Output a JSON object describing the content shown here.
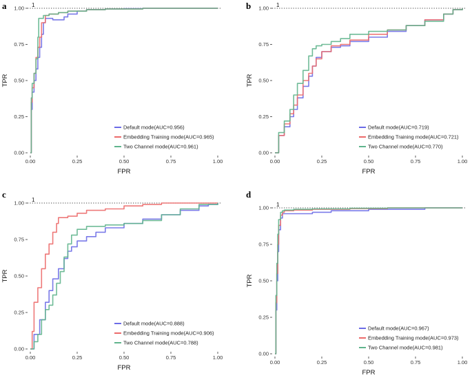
{
  "figure": {
    "colors": {
      "default": "#6b6be6",
      "embedding": "#ec6a6a",
      "two_channel": "#5fb48c",
      "reference": "#000000"
    }
  },
  "chart_data": [
    {
      "panel": "a",
      "type": "line",
      "title": "",
      "xlabel": "FPR",
      "ylabel": "TPR",
      "xlim": [
        0,
        1
      ],
      "ylim": [
        0,
        1
      ],
      "x_ticks": [
        "0.00",
        "0.25",
        "0.50",
        "0.75",
        "1.00"
      ],
      "y_ticks": [
        "0.00",
        "0.25",
        "0.50",
        "0.75",
        "1.00"
      ],
      "reference_line": {
        "y": 1,
        "label": "1",
        "style": "dotted"
      },
      "legend_position": "bottom-right",
      "series": [
        {
          "name": "Default mode(AUC=0.956)",
          "color_key": "default",
          "x": [
            0,
            0.005,
            0.01,
            0.02,
            0.03,
            0.04,
            0.05,
            0.06,
            0.07,
            0.08,
            0.1,
            0.12,
            0.15,
            0.18,
            0.2,
            0.25,
            0.3,
            0.4,
            0.5,
            0.6,
            0.8,
            1.0
          ],
          "y": [
            0,
            0.3,
            0.42,
            0.5,
            0.58,
            0.66,
            0.73,
            0.82,
            0.9,
            0.93,
            0.93,
            0.92,
            0.92,
            0.94,
            0.96,
            0.98,
            0.99,
            0.995,
            0.997,
            1.0,
            1.0,
            1.0
          ]
        },
        {
          "name": "Embedding Training mode(AUC=0.965)",
          "color_key": "embedding",
          "x": [
            0,
            0.005,
            0.01,
            0.02,
            0.03,
            0.04,
            0.05,
            0.06,
            0.08,
            0.1,
            0.15,
            0.2,
            0.3,
            0.4,
            0.6,
            0.8,
            1.0
          ],
          "y": [
            0,
            0.35,
            0.45,
            0.55,
            0.66,
            0.73,
            0.8,
            0.9,
            0.95,
            0.96,
            0.97,
            0.98,
            0.99,
            0.995,
            1.0,
            1.0,
            1.0
          ]
        },
        {
          "name": "Two Channel mode(AUC=0.961)",
          "color_key": "two_channel",
          "x": [
            0,
            0.005,
            0.01,
            0.02,
            0.03,
            0.04,
            0.045,
            0.07,
            0.1,
            0.15,
            0.2,
            0.3,
            0.4,
            0.6,
            0.8,
            1.0
          ],
          "y": [
            0,
            0.38,
            0.48,
            0.55,
            0.65,
            0.8,
            0.93,
            0.95,
            0.96,
            0.97,
            0.98,
            0.99,
            0.995,
            1.0,
            1.0,
            1.0
          ]
        }
      ]
    },
    {
      "panel": "b",
      "type": "line",
      "title": "",
      "xlabel": "FPR",
      "ylabel": "TPR",
      "xlim": [
        0,
        1
      ],
      "ylim": [
        0,
        1
      ],
      "x_ticks": [
        "0.00",
        "0.25",
        "0.50",
        "0.75",
        "1.00"
      ],
      "y_ticks": [
        "0.00",
        "0.25",
        "0.50",
        "0.75",
        "1.00"
      ],
      "reference_line": {
        "y": 1,
        "label": "1",
        "style": "dotted"
      },
      "legend_position": "bottom-right",
      "series": [
        {
          "name": "Default mode(AUC=0.719)",
          "color_key": "default",
          "x": [
            0,
            0.02,
            0.05,
            0.08,
            0.1,
            0.12,
            0.15,
            0.18,
            0.2,
            0.22,
            0.25,
            0.28,
            0.3,
            0.35,
            0.4,
            0.5,
            0.6,
            0.7,
            0.8,
            0.9,
            0.95,
            1.0
          ],
          "y": [
            0,
            0.12,
            0.18,
            0.25,
            0.3,
            0.38,
            0.46,
            0.53,
            0.6,
            0.66,
            0.7,
            0.7,
            0.73,
            0.74,
            0.77,
            0.8,
            0.84,
            0.88,
            0.92,
            0.96,
            0.99,
            1.0
          ]
        },
        {
          "name": "Embedding Training mode(AUC=0.721)",
          "color_key": "embedding",
          "x": [
            0,
            0.02,
            0.05,
            0.08,
            0.1,
            0.12,
            0.15,
            0.18,
            0.2,
            0.22,
            0.25,
            0.3,
            0.35,
            0.4,
            0.5,
            0.6,
            0.7,
            0.8,
            0.9,
            0.95,
            1.0
          ],
          "y": [
            0,
            0.12,
            0.2,
            0.27,
            0.33,
            0.4,
            0.5,
            0.55,
            0.6,
            0.65,
            0.7,
            0.74,
            0.75,
            0.78,
            0.82,
            0.85,
            0.88,
            0.92,
            0.96,
            0.99,
            1.0
          ]
        },
        {
          "name": "Two Channel mode(AUC=0.770)",
          "color_key": "two_channel",
          "x": [
            0,
            0.02,
            0.05,
            0.08,
            0.1,
            0.12,
            0.15,
            0.18,
            0.2,
            0.22,
            0.25,
            0.3,
            0.35,
            0.4,
            0.5,
            0.6,
            0.7,
            0.8,
            0.9,
            0.95,
            1.0
          ],
          "y": [
            0,
            0.14,
            0.22,
            0.3,
            0.4,
            0.48,
            0.57,
            0.67,
            0.72,
            0.74,
            0.75,
            0.77,
            0.79,
            0.82,
            0.84,
            0.85,
            0.88,
            0.91,
            0.96,
            0.99,
            1.0
          ]
        }
      ]
    },
    {
      "panel": "c",
      "type": "line",
      "title": "",
      "xlabel": "FPR",
      "ylabel": "TPR",
      "xlim": [
        0,
        1
      ],
      "ylim": [
        0,
        1
      ],
      "x_ticks": [
        "0.00",
        "0.25",
        "0.50",
        "0.75",
        "1.00"
      ],
      "y_ticks": [
        "0.00",
        "0.25",
        "0.50",
        "0.75",
        "1.00"
      ],
      "reference_line": {
        "y": 1,
        "label": "1",
        "style": "dotted"
      },
      "legend_position": "bottom-right",
      "series": [
        {
          "name": "Default mode(AUC=0.888)",
          "color_key": "default",
          "x": [
            0,
            0.02,
            0.05,
            0.08,
            0.1,
            0.12,
            0.15,
            0.18,
            0.2,
            0.22,
            0.25,
            0.3,
            0.35,
            0.4,
            0.5,
            0.6,
            0.7,
            0.8,
            0.9,
            0.95,
            1.0
          ],
          "y": [
            0,
            0.1,
            0.2,
            0.32,
            0.4,
            0.48,
            0.55,
            0.62,
            0.67,
            0.7,
            0.74,
            0.77,
            0.8,
            0.83,
            0.86,
            0.89,
            0.92,
            0.95,
            0.98,
            0.99,
            1.0
          ]
        },
        {
          "name": "Embedding Training mode(AUC=0.906)",
          "color_key": "embedding",
          "x": [
            0,
            0.01,
            0.02,
            0.04,
            0.06,
            0.08,
            0.1,
            0.12,
            0.14,
            0.15,
            0.2,
            0.25,
            0.3,
            0.4,
            0.5,
            0.6,
            0.7,
            0.8,
            0.9,
            1.0
          ],
          "y": [
            0,
            0.12,
            0.32,
            0.42,
            0.55,
            0.65,
            0.72,
            0.8,
            0.86,
            0.9,
            0.91,
            0.93,
            0.95,
            0.96,
            0.98,
            0.99,
            1.0,
            1.0,
            1.0,
            1.0
          ]
        },
        {
          "name": "Two Channel mode(AUC=0.788)",
          "color_key": "two_channel",
          "x": [
            0,
            0.02,
            0.04,
            0.06,
            0.08,
            0.1,
            0.12,
            0.14,
            0.16,
            0.18,
            0.2,
            0.22,
            0.25,
            0.3,
            0.4,
            0.5,
            0.6,
            0.7,
            0.8,
            0.9,
            1.0
          ],
          "y": [
            0,
            0.05,
            0.1,
            0.2,
            0.27,
            0.3,
            0.37,
            0.45,
            0.53,
            0.63,
            0.72,
            0.78,
            0.82,
            0.84,
            0.85,
            0.86,
            0.88,
            0.92,
            0.96,
            0.99,
            1.0
          ]
        }
      ]
    },
    {
      "panel": "d",
      "type": "line",
      "title": "",
      "xlabel": "FPR",
      "ylabel": "TPR",
      "xlim": [
        0,
        1
      ],
      "ylim": [
        0,
        1
      ],
      "x_ticks": [
        "0.00",
        "0.25",
        "0.50",
        "0.75",
        "1.00"
      ],
      "y_ticks": [
        "0.00",
        "0.25",
        "0.50",
        "0.75",
        "1.00"
      ],
      "reference_line": {
        "y": 1,
        "label": "1",
        "style": "dotted"
      },
      "legend_position": "bottom-right",
      "series": [
        {
          "name": "Default mode(AUC=0.967)",
          "color_key": "default",
          "x": [
            0,
            0.005,
            0.01,
            0.015,
            0.02,
            0.03,
            0.04,
            0.05,
            0.1,
            0.2,
            0.3,
            0.5,
            0.8,
            1.0
          ],
          "y": [
            0,
            0.3,
            0.5,
            0.7,
            0.85,
            0.93,
            0.96,
            0.96,
            0.96,
            0.97,
            0.98,
            0.99,
            1.0,
            1.0
          ]
        },
        {
          "name": "Embedding Training mode(AUC=0.973)",
          "color_key": "embedding",
          "x": [
            0,
            0.005,
            0.01,
            0.015,
            0.02,
            0.03,
            0.04,
            0.05,
            0.1,
            0.2,
            0.4,
            0.6,
            1.0
          ],
          "y": [
            0,
            0.35,
            0.55,
            0.75,
            0.88,
            0.95,
            0.97,
            0.98,
            0.985,
            0.99,
            0.995,
            1.0,
            1.0
          ]
        },
        {
          "name": "Two Channel mode(AUC=0.981)",
          "color_key": "two_channel",
          "x": [
            0,
            0.005,
            0.01,
            0.015,
            0.02,
            0.03,
            0.04,
            0.05,
            0.1,
            0.2,
            0.4,
            0.6,
            1.0
          ],
          "y": [
            0,
            0.4,
            0.62,
            0.82,
            0.92,
            0.97,
            0.98,
            0.985,
            0.99,
            0.993,
            0.997,
            1.0,
            1.0
          ]
        }
      ]
    }
  ]
}
